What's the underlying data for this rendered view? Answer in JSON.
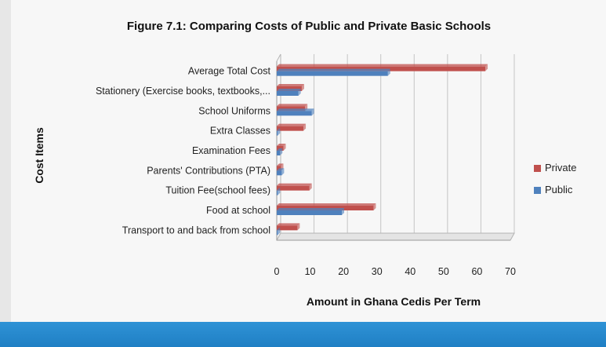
{
  "chart_data": {
    "type": "bar",
    "orientation": "horizontal",
    "title": "Figure 7.1: Comparing  Costs of Public and Private Basic Schools",
    "xlabel": "Amount in Ghana Cedis Per Term",
    "ylabel": "Cost Items",
    "xlim": [
      0,
      70
    ],
    "xticks": [
      0,
      10,
      20,
      30,
      40,
      50,
      60,
      70
    ],
    "grid": true,
    "legend_position": "right",
    "categories": [
      "Average Total Cost",
      "Stationery (Exercise books, textbooks,...",
      "School Uniforms",
      "Extra Classes",
      "Examination Fees",
      "Parents' Contributions (PTA)",
      "Tuition Fee(school fees)",
      "Food at school",
      "Transport to and back from school"
    ],
    "series": [
      {
        "name": "Private",
        "color": "#c0504d",
        "values": [
          62.5,
          7.5,
          8.5,
          8,
          2,
          1.3,
          9.8,
          29,
          6.2
        ]
      },
      {
        "name": "Public",
        "color": "#4f81bd",
        "values": [
          33.3,
          6.5,
          10.5,
          0.3,
          1,
          1.5,
          0.3,
          19.5,
          0.3
        ]
      }
    ]
  }
}
